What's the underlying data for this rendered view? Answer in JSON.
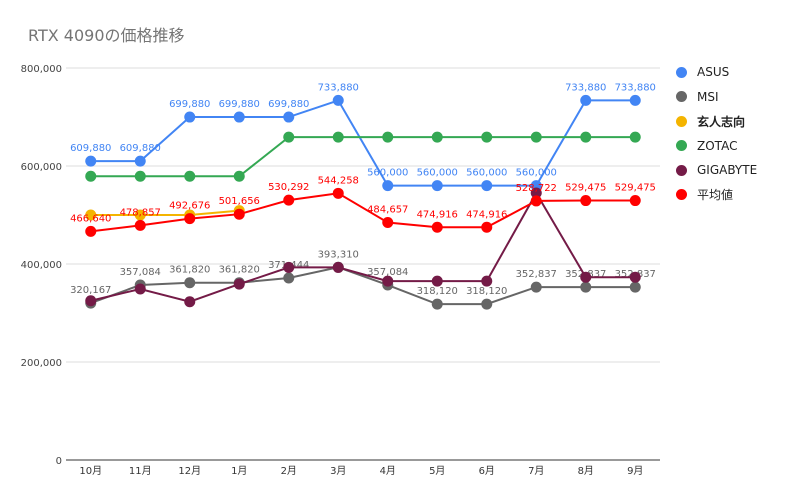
{
  "chart_data": {
    "type": "line",
    "title": "RTX 4090の価格推移",
    "categories": [
      "10月",
      "11月",
      "12月",
      "1月",
      "2月",
      "3月",
      "4月",
      "5月",
      "6月",
      "7月",
      "8月",
      "9月"
    ],
    "yticks": [
      "0",
      "200,000",
      "400,000",
      "600,000",
      "800,000"
    ],
    "ylim": [
      0,
      800000
    ],
    "grid": true,
    "legend_position": "right",
    "series": [
      {
        "name": "ASUS",
        "color": "#4285f4",
        "values": [
          609880,
          609880,
          699880,
          699880,
          699880,
          733880,
          560000,
          560000,
          560000,
          560000,
          733880,
          733880
        ],
        "labels": [
          "609,880",
          "609,880",
          "699,880",
          "699,880",
          "699,880",
          "733,880",
          "560,000",
          "560,000",
          "560,000",
          "560,000",
          "733,880",
          "733,880"
        ]
      },
      {
        "name": "MSI",
        "color": "#666666",
        "values": [
          320167,
          357084,
          361820,
          361820,
          371444,
          393310,
          357084,
          318120,
          318120,
          352837,
          352837,
          352837
        ],
        "labels": [
          "320,167",
          "357,084",
          "361,820",
          "361,820",
          "371,444",
          "393,310",
          "357,084",
          "318,120",
          "318,120",
          "352,837",
          "352,837",
          "352,837"
        ]
      },
      {
        "name": "玄人志向",
        "color": "#f4b400",
        "values": [
          500000,
          500000,
          500000,
          509000,
          null,
          null,
          null,
          null,
          null,
          null,
          null,
          null
        ],
        "labels": []
      },
      {
        "name": "ZOTAC",
        "color": "#34a853",
        "values": [
          579000,
          579000,
          579000,
          579000,
          659000,
          659000,
          659000,
          659000,
          659000,
          659000,
          659000,
          659000
        ],
        "labels": []
      },
      {
        "name": "GIGABYTE",
        "color": "#741b47",
        "values": [
          325000,
          349000,
          323000,
          359000,
          393000,
          393000,
          365000,
          365000,
          365000,
          545000,
          373000,
          373000
        ],
        "labels": []
      },
      {
        "name": "平均値",
        "color": "#ff0000",
        "values": [
          466640,
          478857,
          492676,
          501656,
          530292,
          544258,
          484657,
          474916,
          474916,
          528722,
          529475,
          529475
        ],
        "labels": [
          "466,640",
          "478,857",
          "492,676",
          "501,656",
          "530,292",
          "544,258",
          "484,657",
          "474,916",
          "474,916",
          "528,722",
          "529,475",
          "529,475"
        ]
      }
    ]
  }
}
